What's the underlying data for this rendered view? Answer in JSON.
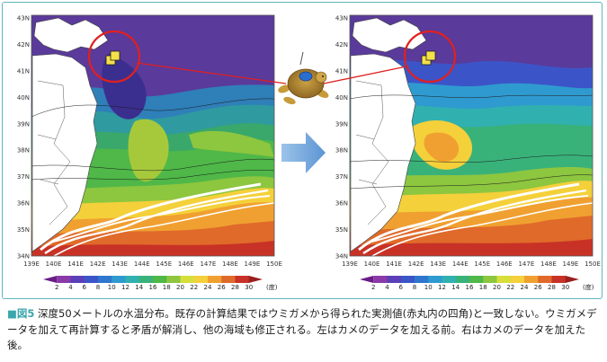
{
  "figure": {
    "label": "■図5",
    "caption": "深度50メートルの水温分布。既存の計算結果ではウミガメから得られた実測値(赤丸内の四角)と一致しない。ウミガメデータを加えて再計算すると矛盾が解消し、他の海域も修正される。左はカメのデータを加える前。右はカメのデータを加えた後。"
  },
  "maps": {
    "lat_labels": [
      "43N",
      "42N",
      "41N",
      "40N",
      "39N",
      "38N",
      "37N",
      "36N",
      "35N",
      "34N"
    ],
    "lon_labels": [
      "139E",
      "140E",
      "141E",
      "142E",
      "143E",
      "144E",
      "145E",
      "146E",
      "147E",
      "148E",
      "149E",
      "150E"
    ]
  },
  "colorbar": {
    "labels": [
      "2",
      "4",
      "6",
      "8",
      "10",
      "12",
      "14",
      "16",
      "18",
      "20",
      "22",
      "24",
      "26",
      "28",
      "30"
    ],
    "unit": "(度)",
    "colors": [
      "#6a1b86",
      "#8a3aa8",
      "#5a3fb8",
      "#3b55c8",
      "#2f76cf",
      "#2f9ad0",
      "#31b0b0",
      "#39b27a",
      "#4fb848",
      "#8dc63f",
      "#d6de3a",
      "#f4d03a",
      "#f0a030",
      "#e06a2a",
      "#c83226",
      "#9a1f1f"
    ]
  },
  "arrow_color": "#6fa8dc",
  "marker_color": "#e02020"
}
